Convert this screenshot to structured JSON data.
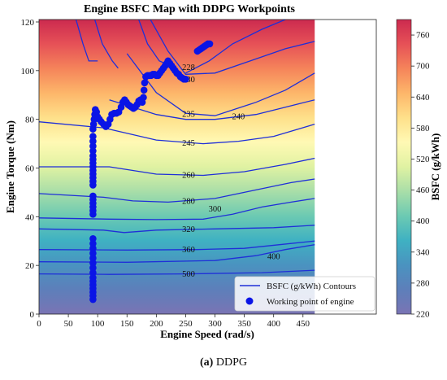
{
  "colors": {
    "contour_line": "#1f2fd8",
    "workpoint": "#0a14e6",
    "colormap": [
      "#7a74b4",
      "#5d7fba",
      "#4a93c0",
      "#3fb1c2",
      "#6ccab2",
      "#a9dea8",
      "#e0f2a2",
      "#fff9b4",
      "#fee08a",
      "#fdb66a",
      "#f5845a",
      "#e65157",
      "#cc2a4f"
    ]
  },
  "chart_data": {
    "type": "contour",
    "title": "Engine BSFC Map with DDPG Workpoints",
    "xlabel": "Engine Speed (rad/s)",
    "ylabel": "Engine Torque (Nm)",
    "xlim": [
      0,
      575
    ],
    "ylim": [
      0,
      121
    ],
    "xticks": [
      0,
      50,
      100,
      150,
      200,
      250,
      300,
      350,
      400,
      450
    ],
    "yticks": [
      0,
      20,
      40,
      60,
      80,
      100,
      120
    ],
    "map_x_max": 470,
    "colorbar": {
      "label": "BSFC (g/kWh)",
      "min": 220,
      "max": 790,
      "ticks": [
        220,
        280,
        340,
        400,
        460,
        520,
        580,
        640,
        700,
        760
      ]
    },
    "contours": [
      {
        "level": 500,
        "points": [
          [
            0,
            16.5
          ],
          [
            120,
            16.3
          ],
          [
            250,
            16.5
          ],
          [
            380,
            17
          ],
          [
            470,
            18
          ]
        ],
        "label_at": [
          255,
          16.6
        ]
      },
      {
        "level": 400,
        "points": [
          [
            0,
            21.5
          ],
          [
            150,
            21.3
          ],
          [
            300,
            22
          ],
          [
            370,
            24
          ],
          [
            420,
            26.5
          ],
          [
            470,
            28.5
          ]
        ],
        "label_at": [
          400,
          23.8
        ]
      },
      {
        "level": 360,
        "points": [
          [
            0,
            26.5
          ],
          [
            150,
            26.3
          ],
          [
            270,
            26.5
          ],
          [
            350,
            27
          ],
          [
            410,
            28.5
          ],
          [
            470,
            30
          ]
        ],
        "label_at": [
          255,
          26.5
        ]
      },
      {
        "level": 320,
        "points": [
          [
            0,
            35
          ],
          [
            110,
            34.5
          ],
          [
            145,
            33.5
          ],
          [
            200,
            34.5
          ],
          [
            300,
            35
          ],
          [
            400,
            35.5
          ],
          [
            470,
            36.5
          ]
        ],
        "label_at": [
          255,
          35
        ]
      },
      {
        "level": 300,
        "points": [
          [
            0,
            39.5
          ],
          [
            120,
            39
          ],
          [
            200,
            38.8
          ],
          [
            280,
            39
          ],
          [
            330,
            41
          ],
          [
            380,
            44
          ],
          [
            430,
            46
          ],
          [
            470,
            47.5
          ]
        ],
        "label_at": [
          300,
          43.3
        ]
      },
      {
        "level": 280,
        "points": [
          [
            0,
            49.5
          ],
          [
            110,
            48
          ],
          [
            160,
            46.5
          ],
          [
            220,
            46
          ],
          [
            300,
            47.5
          ],
          [
            370,
            51
          ],
          [
            430,
            54
          ],
          [
            470,
            55.5
          ]
        ],
        "label_at": [
          255,
          46.5
        ]
      },
      {
        "level": 260,
        "points": [
          [
            0,
            60.5
          ],
          [
            120,
            60.5
          ],
          [
            200,
            57.5
          ],
          [
            280,
            57
          ],
          [
            350,
            58.5
          ],
          [
            420,
            61.5
          ],
          [
            470,
            64
          ]
        ],
        "label_at": [
          255,
          57.2
        ]
      },
      {
        "level": 245,
        "points": [
          [
            0,
            79
          ],
          [
            110,
            76.5
          ],
          [
            200,
            71.5
          ],
          [
            280,
            70
          ],
          [
            340,
            71
          ],
          [
            400,
            73
          ],
          [
            470,
            78
          ]
        ],
        "label_at": [
          255,
          70.3
        ]
      },
      {
        "level": 240,
        "points": [
          [
            120,
            88
          ],
          [
            200,
            82
          ],
          [
            250,
            80
          ],
          [
            300,
            80
          ],
          [
            370,
            82
          ],
          [
            420,
            85
          ],
          [
            470,
            88
          ]
        ],
        "label_at": [
          340,
          81.2
        ]
      },
      {
        "level": 235,
        "points": [
          [
            150,
            107
          ],
          [
            200,
            91
          ],
          [
            250,
            82.5
          ],
          [
            300,
            81.5
          ],
          [
            370,
            87
          ],
          [
            420,
            92
          ],
          [
            470,
            99
          ]
        ],
        "label_at": [
          255,
          82.3
        ]
      },
      {
        "level": 230,
        "points": [
          [
            190,
            121
          ],
          [
            220,
            108
          ],
          [
            250,
            98.5
          ],
          [
            300,
            99
          ],
          [
            360,
            104
          ],
          [
            420,
            109
          ],
          [
            470,
            112
          ]
        ],
        "label_at": [
          255,
          96.5
        ]
      },
      {
        "level": 228,
        "points": [
          [
            250,
            99
          ],
          [
            290,
            104
          ],
          [
            330,
            111
          ],
          [
            380,
            117
          ],
          [
            420,
            121
          ]
        ],
        "label_at": [
          255,
          101.5
        ]
      },
      {
        "level": null,
        "points": [
          [
            63,
            121
          ],
          [
            75,
            111
          ],
          [
            85,
            104
          ],
          [
            100,
            104
          ]
        ]
      },
      {
        "level": null,
        "points": [
          [
            95,
            121
          ],
          [
            108,
            111
          ],
          [
            125,
            104
          ],
          [
            135,
            101
          ]
        ]
      },
      {
        "level": null,
        "points": [
          [
            170,
            121
          ],
          [
            185,
            111
          ],
          [
            205,
            104
          ],
          [
            235,
            101
          ]
        ]
      }
    ],
    "workpoints": [
      [
        92,
        6
      ],
      [
        92,
        7.5
      ],
      [
        92,
        9
      ],
      [
        92,
        10.5
      ],
      [
        92,
        12
      ],
      [
        92,
        13.5
      ],
      [
        92,
        15
      ],
      [
        92,
        17
      ],
      [
        92,
        19
      ],
      [
        92,
        21
      ],
      [
        92,
        23
      ],
      [
        92,
        25
      ],
      [
        92,
        27
      ],
      [
        92,
        29
      ],
      [
        92,
        31
      ],
      [
        92,
        41
      ],
      [
        92,
        42.5
      ],
      [
        92,
        44
      ],
      [
        92,
        45.5
      ],
      [
        92,
        47
      ],
      [
        92,
        48.5
      ],
      [
        92,
        53
      ],
      [
        92,
        54.5
      ],
      [
        92,
        56
      ],
      [
        92,
        57.5
      ],
      [
        92,
        59
      ],
      [
        92,
        60.5
      ],
      [
        92,
        62
      ],
      [
        92,
        63.5
      ],
      [
        92,
        65
      ],
      [
        92,
        67
      ],
      [
        92,
        69
      ],
      [
        92,
        71
      ],
      [
        92,
        73
      ],
      [
        92,
        76
      ],
      [
        93,
        78
      ],
      [
        94,
        80
      ],
      [
        95,
        82
      ],
      [
        96,
        84
      ],
      [
        98,
        83
      ],
      [
        100,
        81
      ],
      [
        103,
        80
      ],
      [
        106,
        79
      ],
      [
        110,
        78
      ],
      [
        114,
        77
      ],
      [
        118,
        78
      ],
      [
        121,
        80
      ],
      [
        124,
        82
      ],
      [
        128,
        82.5
      ],
      [
        132,
        82.5
      ],
      [
        136,
        83
      ],
      [
        140,
        85
      ],
      [
        143,
        87
      ],
      [
        146,
        88
      ],
      [
        149,
        87
      ],
      [
        152,
        86
      ],
      [
        155,
        85.5
      ],
      [
        158,
        85
      ],
      [
        161,
        84.5
      ],
      [
        164,
        85
      ],
      [
        167,
        86
      ],
      [
        170,
        87.5
      ],
      [
        173,
        88
      ],
      [
        176,
        87
      ],
      [
        178,
        89
      ],
      [
        179,
        92
      ],
      [
        180,
        95
      ],
      [
        182,
        97.5
      ],
      [
        185,
        98
      ],
      [
        188,
        98
      ],
      [
        191,
        98
      ],
      [
        194,
        98.5
      ],
      [
        197,
        98.5
      ],
      [
        200,
        98
      ],
      [
        203,
        98
      ],
      [
        206,
        99
      ],
      [
        209,
        100
      ],
      [
        212,
        101
      ],
      [
        215,
        102
      ],
      [
        218,
        103
      ],
      [
        220,
        104
      ],
      [
        223,
        103
      ],
      [
        226,
        102
      ],
      [
        229,
        101
      ],
      [
        232,
        100
      ],
      [
        235,
        99
      ],
      [
        238,
        98.5
      ],
      [
        241,
        97.5
      ],
      [
        244,
        97
      ],
      [
        247,
        96.5
      ],
      [
        250,
        96.5
      ],
      [
        270,
        108
      ],
      [
        273,
        108.5
      ],
      [
        276,
        109
      ],
      [
        279,
        109.5
      ],
      [
        282,
        110
      ],
      [
        285,
        110.5
      ],
      [
        288,
        111
      ],
      [
        291,
        111
      ]
    ],
    "legend": {
      "position": "lower-right",
      "entries": [
        "BSFC (g/kWh) Contours",
        "Working point of engine"
      ]
    }
  },
  "caption": {
    "label": "(a)",
    "text": "DDPG"
  }
}
